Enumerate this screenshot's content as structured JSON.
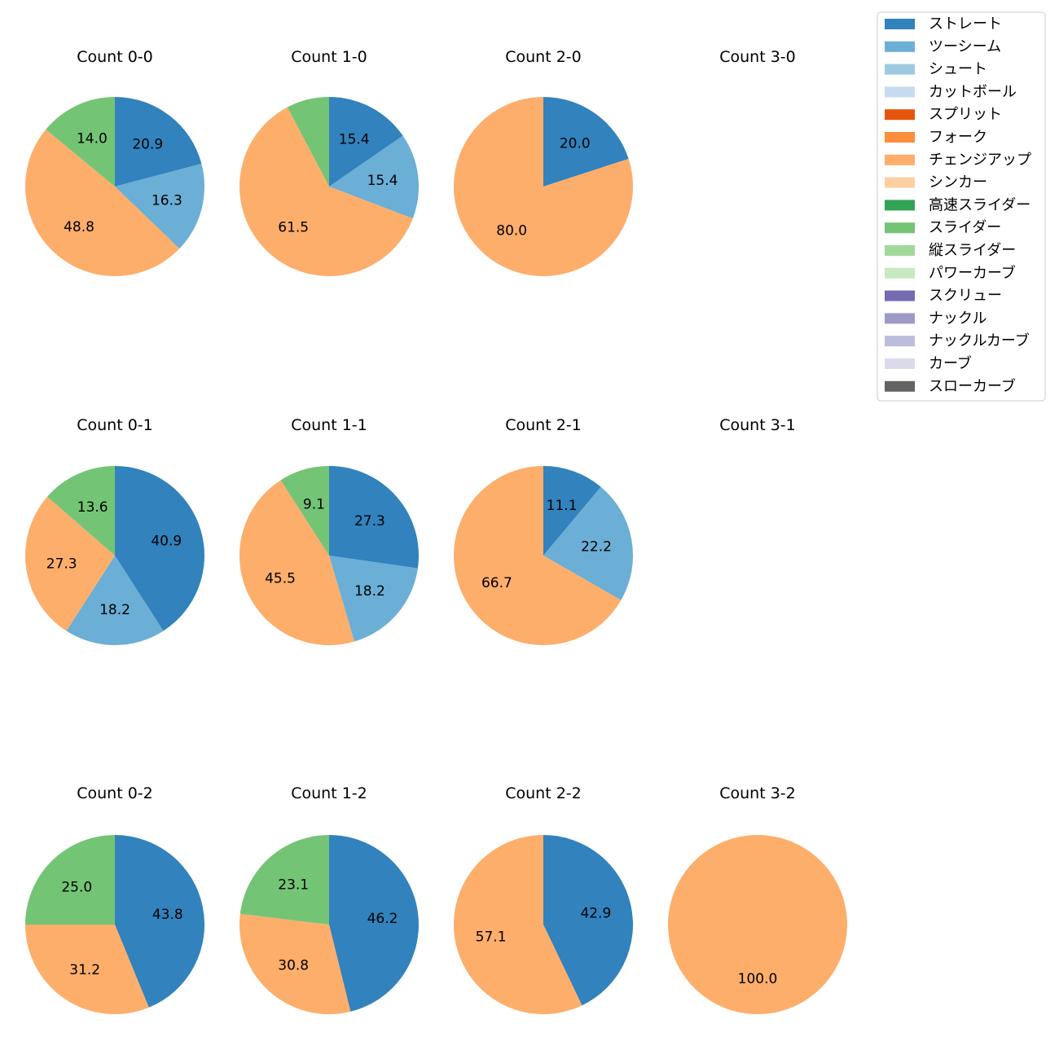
{
  "chart_data": {
    "type": "pie",
    "series_names": [
      "ストレート",
      "ツーシーム",
      "シュート",
      "カットボール",
      "スプリット",
      "フォーク",
      "チェンジアップ",
      "シンカー",
      "高速スライダー",
      "スライダー",
      "縦スライダー",
      "パワーカーブ",
      "スクリュー",
      "ナックル",
      "ナックルカーブ",
      "カーブ",
      "スローカーブ"
    ],
    "colors": [
      "#3182bd",
      "#6baed6",
      "#9ecae1",
      "#c6dbef",
      "#e6550d",
      "#fd8d3c",
      "#fdae6b",
      "#fdd0a2",
      "#31a354",
      "#74c476",
      "#a1d99b",
      "#c7e9c0",
      "#756bb1",
      "#9e9ac8",
      "#bcbddc",
      "#dadaeb",
      "#636363"
    ],
    "legend": {
      "location": "top-right",
      "labels": [
        "ストレート",
        "ツーシーム",
        "シュート",
        "カットボール",
        "スプリット",
        "フォーク",
        "チェンジアップ",
        "シンカー",
        "高速スライダー",
        "スライダー",
        "縦スライダー",
        "パワーカーブ",
        "スクリュー",
        "ナックル",
        "ナックルカーブ",
        "カーブ",
        "スローカーブ"
      ]
    },
    "charts": [
      {
        "title": "Count 0-0",
        "slices": [
          {
            "series": "ストレート",
            "value": 20.9
          },
          {
            "series": "ツーシーム",
            "value": 16.3
          },
          {
            "series": "チェンジアップ",
            "value": 48.8
          },
          {
            "series": "スライダー",
            "value": 14.0
          }
        ]
      },
      {
        "title": "Count 1-0",
        "slices": [
          {
            "series": "ストレート",
            "value": 15.4
          },
          {
            "series": "ツーシーム",
            "value": 15.4
          },
          {
            "series": "チェンジアップ",
            "value": 61.5
          },
          {
            "series": "スライダー",
            "value": 7.7,
            "show_label": false
          }
        ]
      },
      {
        "title": "Count 2-0",
        "slices": [
          {
            "series": "ストレート",
            "value": 20.0
          },
          {
            "series": "チェンジアップ",
            "value": 80.0
          }
        ]
      },
      {
        "title": "Count 3-0",
        "slices": []
      },
      {
        "title": "Count 0-1",
        "slices": [
          {
            "series": "ストレート",
            "value": 40.9
          },
          {
            "series": "ツーシーム",
            "value": 18.2
          },
          {
            "series": "チェンジアップ",
            "value": 27.3
          },
          {
            "series": "スライダー",
            "value": 13.6
          }
        ]
      },
      {
        "title": "Count 1-1",
        "slices": [
          {
            "series": "ストレート",
            "value": 27.3
          },
          {
            "series": "ツーシーム",
            "value": 18.2
          },
          {
            "series": "チェンジアップ",
            "value": 45.5
          },
          {
            "series": "スライダー",
            "value": 9.1
          }
        ]
      },
      {
        "title": "Count 2-1",
        "slices": [
          {
            "series": "ストレート",
            "value": 11.1
          },
          {
            "series": "ツーシーム",
            "value": 22.2
          },
          {
            "series": "チェンジアップ",
            "value": 66.7
          }
        ]
      },
      {
        "title": "Count 3-1",
        "slices": []
      },
      {
        "title": "Count 0-2",
        "slices": [
          {
            "series": "ストレート",
            "value": 43.8
          },
          {
            "series": "チェンジアップ",
            "value": 31.2
          },
          {
            "series": "スライダー",
            "value": 25.0
          }
        ]
      },
      {
        "title": "Count 1-2",
        "slices": [
          {
            "series": "ストレート",
            "value": 46.2
          },
          {
            "series": "チェンジアップ",
            "value": 30.8
          },
          {
            "series": "スライダー",
            "value": 23.1
          }
        ]
      },
      {
        "title": "Count 2-2",
        "slices": [
          {
            "series": "ストレート",
            "value": 42.9
          },
          {
            "series": "チェンジアップ",
            "value": 57.1
          }
        ]
      },
      {
        "title": "Count 3-2",
        "slices": [
          {
            "series": "チェンジアップ",
            "value": 100.0
          }
        ]
      }
    ]
  }
}
